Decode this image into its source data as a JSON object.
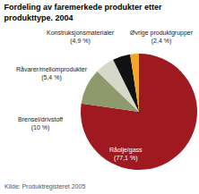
{
  "chart_data": {
    "type": "pie",
    "title": "Fordeling av faremerkede produkter etter produkttype. 2004",
    "categories": [
      "Råolje/gass",
      "Brensel/drivstoff",
      "Råvarer/mellomprodukter",
      "Konstruksjonsmaterialer",
      "Øvrige produktgrupper"
    ],
    "values": [
      77.1,
      10,
      5.4,
      4.9,
      2.4
    ],
    "value_labels": [
      "(77,1 %)",
      "(10 %)",
      "(5,4 %)",
      "(4,9 %)",
      "(2,4 %)"
    ],
    "colors": [
      "#9e1a20",
      "#8f9a6c",
      "#d8d8ca",
      "#111111",
      "#f4a62a"
    ],
    "data_labels": true,
    "annotations": [
      "Kilde: Produktregisteret 2005"
    ]
  }
}
